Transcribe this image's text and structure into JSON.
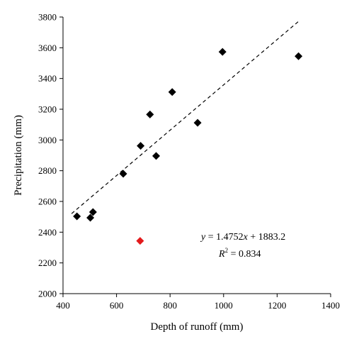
{
  "chart_data": {
    "type": "scatter",
    "xlabel": "Depth of runoff (mm)",
    "ylabel": "Precipitation (mm)",
    "xlim": [
      400,
      1400
    ],
    "ylim": [
      2000,
      3800
    ],
    "x_ticks": [
      400,
      600,
      800,
      1000,
      1200,
      1400
    ],
    "y_ticks": [
      2000,
      2200,
      2400,
      2600,
      2800,
      3000,
      3200,
      3400,
      3600,
      3800
    ],
    "x_tick_labels": [
      "400",
      "600",
      "800",
      "1000",
      "1200",
      "1400"
    ],
    "y_tick_labels": [
      "2000",
      "2200",
      "2400",
      "2600",
      "2800",
      "3000",
      "3200",
      "3400",
      "3600",
      "3800"
    ],
    "grid": false,
    "marker_color": "#000000",
    "outlier_color": "#e31a1c",
    "points": [
      {
        "x": 452,
        "y": 2503
      },
      {
        "x": 502,
        "y": 2494
      },
      {
        "x": 512,
        "y": 2531
      },
      {
        "x": 625,
        "y": 2780
      },
      {
        "x": 690,
        "y": 2962
      },
      {
        "x": 725,
        "y": 3166
      },
      {
        "x": 748,
        "y": 2896
      },
      {
        "x": 808,
        "y": 3312
      },
      {
        "x": 903,
        "y": 3112
      },
      {
        "x": 996,
        "y": 3573
      },
      {
        "x": 1280,
        "y": 3545
      }
    ],
    "outliers": [
      {
        "x": 688,
        "y": 2343
      }
    ],
    "trendline": {
      "slope": 1.4752,
      "intercept": 1883.2,
      "x_range": [
        432,
        1282
      ],
      "style": "dashed"
    },
    "annotation": {
      "equation_prefix": "y",
      "equation_rest": " = 1.4752",
      "equation_var": "x",
      "equation_tail": " + 1883.2",
      "r2_label": "R",
      "r2_exponent": "2",
      "r2_value": " = 0.834"
    }
  }
}
